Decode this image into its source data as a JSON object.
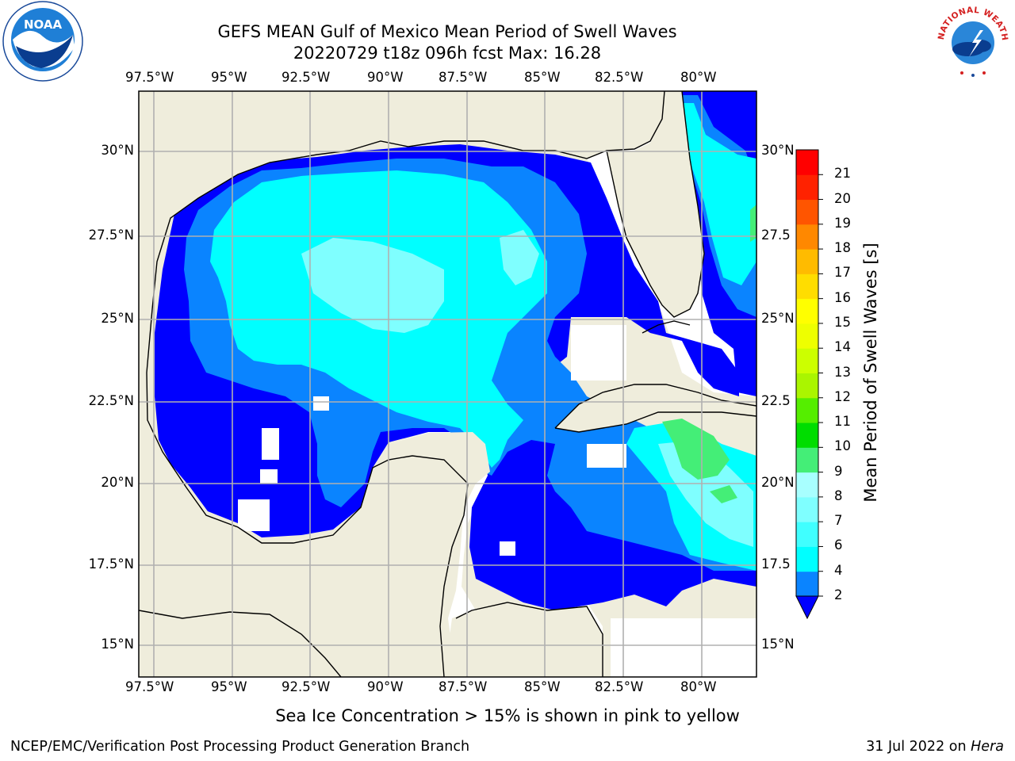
{
  "header": {
    "title_line1": "GEFS MEAN Gulf of Mexico Mean Period of Swell Waves",
    "title_line2": "20220729 t18z 096h fcst   Max: 16.28"
  },
  "logos": {
    "left": "NOAA",
    "right": "NATIONAL WEATHER SERVICE"
  },
  "map": {
    "lon_ticks": [
      "97.5°W",
      "95°W",
      "92.5°W",
      "90°W",
      "87.5°W",
      "85°W",
      "82.5°W",
      "80°W"
    ],
    "lat_ticks_left": [
      "30°N",
      "27.5°N",
      "25°N",
      "22.5°N",
      "20°N",
      "17.5°N",
      "15°N"
    ],
    "lat_ticks_right": [
      "30°N",
      "27.5",
      "25°N",
      "22.5",
      "20°N",
      "17.5",
      "15°N"
    ],
    "colors": {
      "land": "#efeddc",
      "period_2_4": "#0000ff",
      "period_4_6": "#0a84ff",
      "period_6_8": "#00ffff",
      "period_8_9": "#7fffff",
      "period_9_10": "#44ee77",
      "period_13_14": "#d8ff00",
      "grid": "#b0b0b0"
    }
  },
  "colorbar": {
    "label": "Mean Period of Swell Waves [s]",
    "ticks": [
      "2",
      "4",
      "6",
      "7",
      "8",
      "9",
      "10",
      "11",
      "12",
      "13",
      "14",
      "15",
      "16",
      "17",
      "18",
      "19",
      "20",
      "21"
    ],
    "colors": [
      "#0a84ff",
      "#00ffff",
      "#40ffff",
      "#7fffff",
      "#a8ffff",
      "#44ee77",
      "#00dd00",
      "#55ee00",
      "#aaf500",
      "#ccff00",
      "#eeff00",
      "#ffff00",
      "#ffdd00",
      "#ffbb00",
      "#ff8800",
      "#ff5500",
      "#ff2200",
      "#ff0000"
    ],
    "extend_color": "#0000ff"
  },
  "footer": {
    "note": "Sea Ice Concentration > 15% is shown in pink to yellow",
    "credit": "NCEP/EMC/Verification Post Processing Product Generation Branch",
    "date": "31 Jul 2022 on",
    "host": "Hera"
  }
}
